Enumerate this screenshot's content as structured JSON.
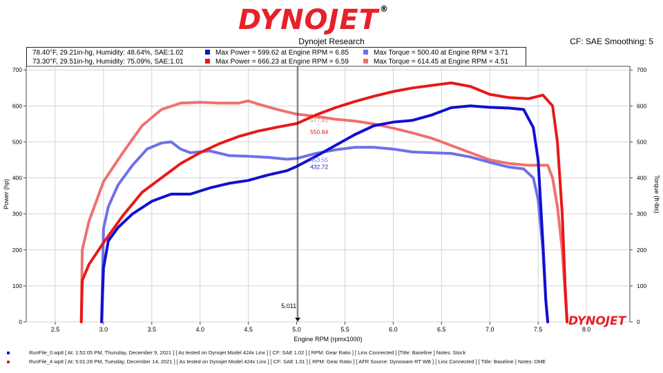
{
  "brand": {
    "text": "DYNOJET",
    "reg": "®",
    "color": "#e8202a",
    "watermark_color": "#e8202a"
  },
  "header": {
    "title": "Dynojet Research",
    "subtitle": "CF: SAE Smoothing: 5"
  },
  "legend": [
    {
      "conditions": "78.40°F, 29.21in-hg, Humidity: 48.64%, SAE:1.02",
      "power": "Max Power = 599.62 at Engine RPM = 6.85",
      "power_color": "#1010d0",
      "torque": "Max Torque = 500.40 at Engine RPM = 3.71",
      "torque_color": "#7070e8"
    },
    {
      "conditions": "73.30°F, 29.51in-hg, Humidity: 75.09%, SAE:1.01",
      "power": "Max Power = 666.23 at Engine RPM = 6.59",
      "power_color": "#e81818",
      "torque": "Max Torque = 614.45 at Engine RPM = 4.51",
      "torque_color": "#f07070"
    }
  ],
  "chart_data": {
    "type": "line",
    "xlabel": "Engine RPM (rpmx1000)",
    "ylabel_left": "Power (hp)",
    "ylabel_right": "Torque (ft-lbs)",
    "xlim": [
      2.2,
      8.45
    ],
    "ylim": [
      0,
      710
    ],
    "x_ticks": [
      "2.5",
      "3.0",
      "3.5",
      "4.0",
      "4.5",
      "5.0",
      "5.5",
      "6.0",
      "6.5",
      "7.0",
      "7.5",
      "8.0"
    ],
    "y_ticks": [
      "0",
      "100",
      "200",
      "300",
      "400",
      "500",
      "600",
      "700"
    ],
    "grid": true,
    "cursor": {
      "x": 5.011,
      "label": "5.011"
    },
    "cursor_readouts": [
      {
        "value": "577.41",
        "color": "#f07070"
      },
      {
        "value": "550.84",
        "color": "#e81818"
      },
      {
        "value": "453.55",
        "color": "#7070e8"
      },
      {
        "value": "432.72",
        "color": "#1010d0"
      }
    ],
    "series": [
      {
        "name": "Max Power = 599.62 at Engine RPM = 6.85",
        "color": "#1010d0",
        "axis": "left",
        "x": [
          2.98,
          3.0,
          3.05,
          3.15,
          3.3,
          3.5,
          3.7,
          3.9,
          4.1,
          4.3,
          4.5,
          4.7,
          4.9,
          5.0,
          5.2,
          5.4,
          5.6,
          5.8,
          6.0,
          6.2,
          6.4,
          6.6,
          6.8,
          7.0,
          7.2,
          7.35,
          7.45,
          7.5,
          7.55,
          7.58,
          7.6
        ],
        "y": [
          0,
          150,
          225,
          262,
          300,
          335,
          355,
          355,
          372,
          385,
          393,
          408,
          420,
          432,
          460,
          490,
          520,
          545,
          555,
          560,
          575,
          595,
          600,
          596,
          594,
          590,
          540,
          450,
          220,
          60,
          0
        ]
      },
      {
        "name": "Max Power = 666.23 at Engine RPM = 6.59",
        "color": "#e81818",
        "axis": "left",
        "x": [
          2.77,
          2.78,
          2.85,
          3.0,
          3.2,
          3.4,
          3.6,
          3.8,
          4.0,
          4.2,
          4.4,
          4.6,
          4.8,
          5.0,
          5.2,
          5.4,
          5.6,
          5.8,
          6.0,
          6.2,
          6.4,
          6.6,
          6.8,
          7.0,
          7.2,
          7.4,
          7.55,
          7.65,
          7.7,
          7.75,
          7.78,
          7.8
        ],
        "y": [
          0,
          115,
          160,
          220,
          295,
          360,
          400,
          440,
          470,
          495,
          515,
          530,
          541,
          551,
          575,
          595,
          612,
          627,
          640,
          650,
          657,
          664,
          654,
          632,
          623,
          620,
          630,
          600,
          500,
          300,
          100,
          0
        ]
      },
      {
        "name": "Max Torque = 500.40 at Engine RPM = 3.71",
        "color": "#7070e8",
        "axis": "right",
        "x": [
          2.98,
          3.0,
          3.05,
          3.15,
          3.3,
          3.45,
          3.6,
          3.7,
          3.8,
          3.9,
          4.1,
          4.3,
          4.5,
          4.7,
          4.9,
          5.0,
          5.2,
          5.4,
          5.6,
          5.8,
          6.0,
          6.2,
          6.4,
          6.6,
          6.8,
          7.0,
          7.2,
          7.35,
          7.45,
          7.5,
          7.55,
          7.58,
          7.6
        ],
        "y": [
          0,
          260,
          320,
          380,
          435,
          480,
          497,
          500,
          480,
          470,
          475,
          462,
          460,
          457,
          452,
          454,
          468,
          478,
          485,
          485,
          480,
          472,
          470,
          468,
          458,
          443,
          430,
          425,
          400,
          340,
          200,
          60,
          0
        ]
      },
      {
        "name": "Max Torque = 614.45 at Engine RPM = 4.51",
        "color": "#f07070",
        "axis": "right",
        "x": [
          2.77,
          2.78,
          2.85,
          3.0,
          3.2,
          3.4,
          3.6,
          3.8,
          4.0,
          4.2,
          4.4,
          4.5,
          4.6,
          4.8,
          5.0,
          5.2,
          5.4,
          5.6,
          5.8,
          6.0,
          6.2,
          6.4,
          6.6,
          6.8,
          7.0,
          7.2,
          7.4,
          7.6,
          7.65,
          7.7,
          7.75,
          7.78,
          7.8
        ],
        "y": [
          0,
          200,
          280,
          390,
          470,
          545,
          590,
          608,
          610,
          608,
          608,
          614,
          605,
          590,
          577,
          571,
          563,
          558,
          550,
          538,
          525,
          510,
          490,
          470,
          450,
          440,
          435,
          435,
          400,
          320,
          200,
          80,
          0
        ]
      }
    ]
  },
  "footer": [
    {
      "color": "#1010d0",
      "text": "RunFile_0.wp8  [ At: 1:52:05 PM, Thursday, December 9, 2021 ]  [ As tested on Dynojet Model 424x Linx ]  [ CF: SAE 1.02 ]  [ RPM: Gear Ratio ]  [ Linx Connected ]  [Title: Baseline ]   Notes: Stock"
    },
    {
      "color": "#e81818",
      "text": "RunFile_4.wp8  [ At: 5:01:28 PM, Tuesday, December 14, 2021 ]  [ As tested on Dynojet Model 424x Linx ]  [ CF: SAE 1.01 ]  [ RPM: Gear Ratio ]  [ AFR Source: Dynoware RT WB ]  [ Linx Connected ]  [ Title: Baseline ]   Notes: DME"
    }
  ]
}
